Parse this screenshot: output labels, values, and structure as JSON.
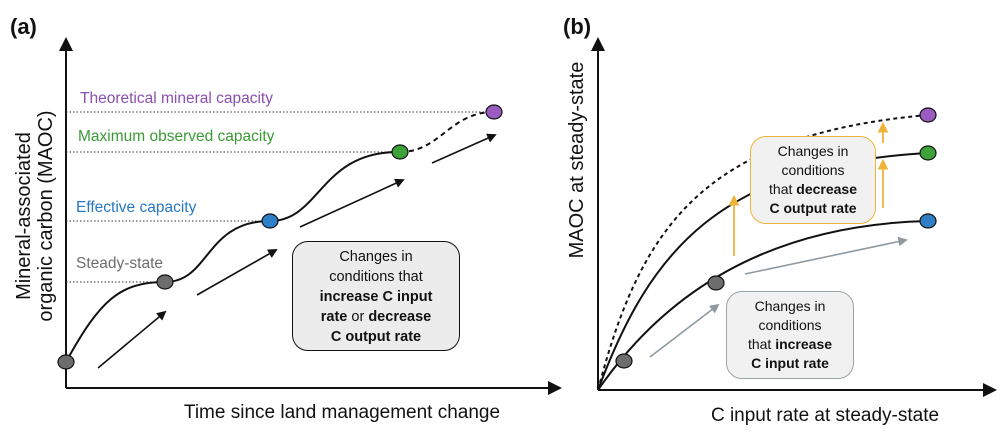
{
  "panel_a": {
    "label": "(a)",
    "y_axis_line1": "Mineral-associated",
    "y_axis_line2": "organic carbon (MAOC)",
    "x_axis": "Time since land management change",
    "levels": {
      "theoretical": "Theoretical mineral capacity",
      "maximum": "Maximum observed capacity",
      "effective": "Effective capacity",
      "steady": "Steady-state"
    },
    "box": {
      "line1": "Changes in",
      "line2": "conditions that",
      "line3_bold": "increase C input",
      "line4_bold_a": "rate",
      "line4_normal": " or ",
      "line4_bold_b": "decrease",
      "line5_bold": "C output rate"
    }
  },
  "panel_b": {
    "label": "(b)",
    "y_axis": "MAOC at steady-state",
    "x_axis": "C input rate at steady-state",
    "box_output": {
      "line1": "Changes in",
      "line2": "conditions",
      "line3_normal": "that ",
      "line3_bold": "decrease",
      "line4_bold": "C output rate"
    },
    "box_input": {
      "line1": "Changes in",
      "line2": "conditions",
      "line3_normal": "that ",
      "line3_bold": "increase",
      "line4_bold": "C input rate"
    }
  },
  "colors": {
    "grey_point": "#6d6d6d",
    "blue_point": "#2f7fc8",
    "green_point": "#3ea23a",
    "purple_point": "#9a5cc0",
    "theoretical_text": "#8a4fb0",
    "maximum_text": "#3a9a35",
    "effective_text": "#2878c3",
    "steady_text": "#6d6d6d",
    "orange_arrow": "#f0b33a",
    "grey_arrow": "#8f9aa0"
  }
}
